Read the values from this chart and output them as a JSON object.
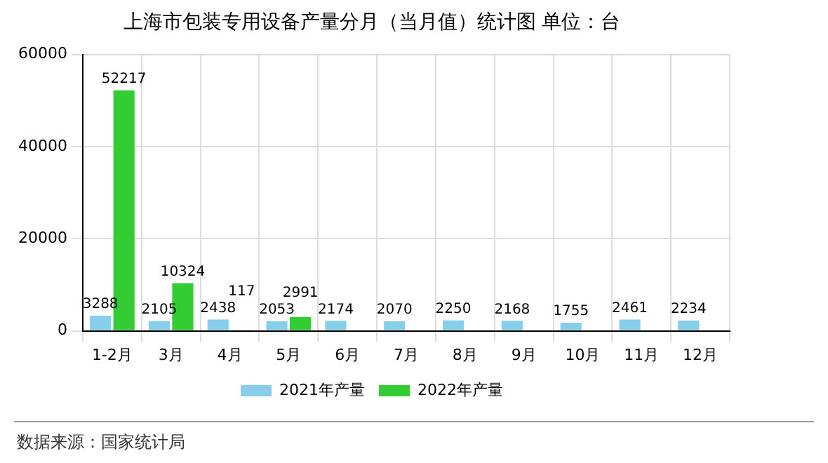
{
  "chart_data": {
    "type": "bar",
    "title": "上海市包装专用设备产量分月（当月值）统计图 单位：台",
    "categories": [
      "1-2月",
      "3月",
      "4月",
      "5月",
      "6月",
      "7月",
      "8月",
      "9月",
      "10月",
      "11月",
      "12月"
    ],
    "series": [
      {
        "name": "2021年产量",
        "color": "#87ceeb",
        "values": [
          3288,
          2105,
          2438,
          2053,
          2174,
          2070,
          2250,
          2168,
          1755,
          2461,
          2234
        ]
      },
      {
        "name": "2022年产量",
        "color": "#33cc33",
        "values": [
          52217,
          10324,
          117,
          2991,
          null,
          null,
          null,
          null,
          null,
          null,
          null
        ]
      }
    ],
    "ylim": [
      0,
      60000
    ],
    "yticks": [
      0,
      20000,
      40000,
      60000
    ],
    "grid": true,
    "legend": "bottom",
    "data_labels": true,
    "annotations": [
      "数据来源：国家统计局"
    ]
  }
}
